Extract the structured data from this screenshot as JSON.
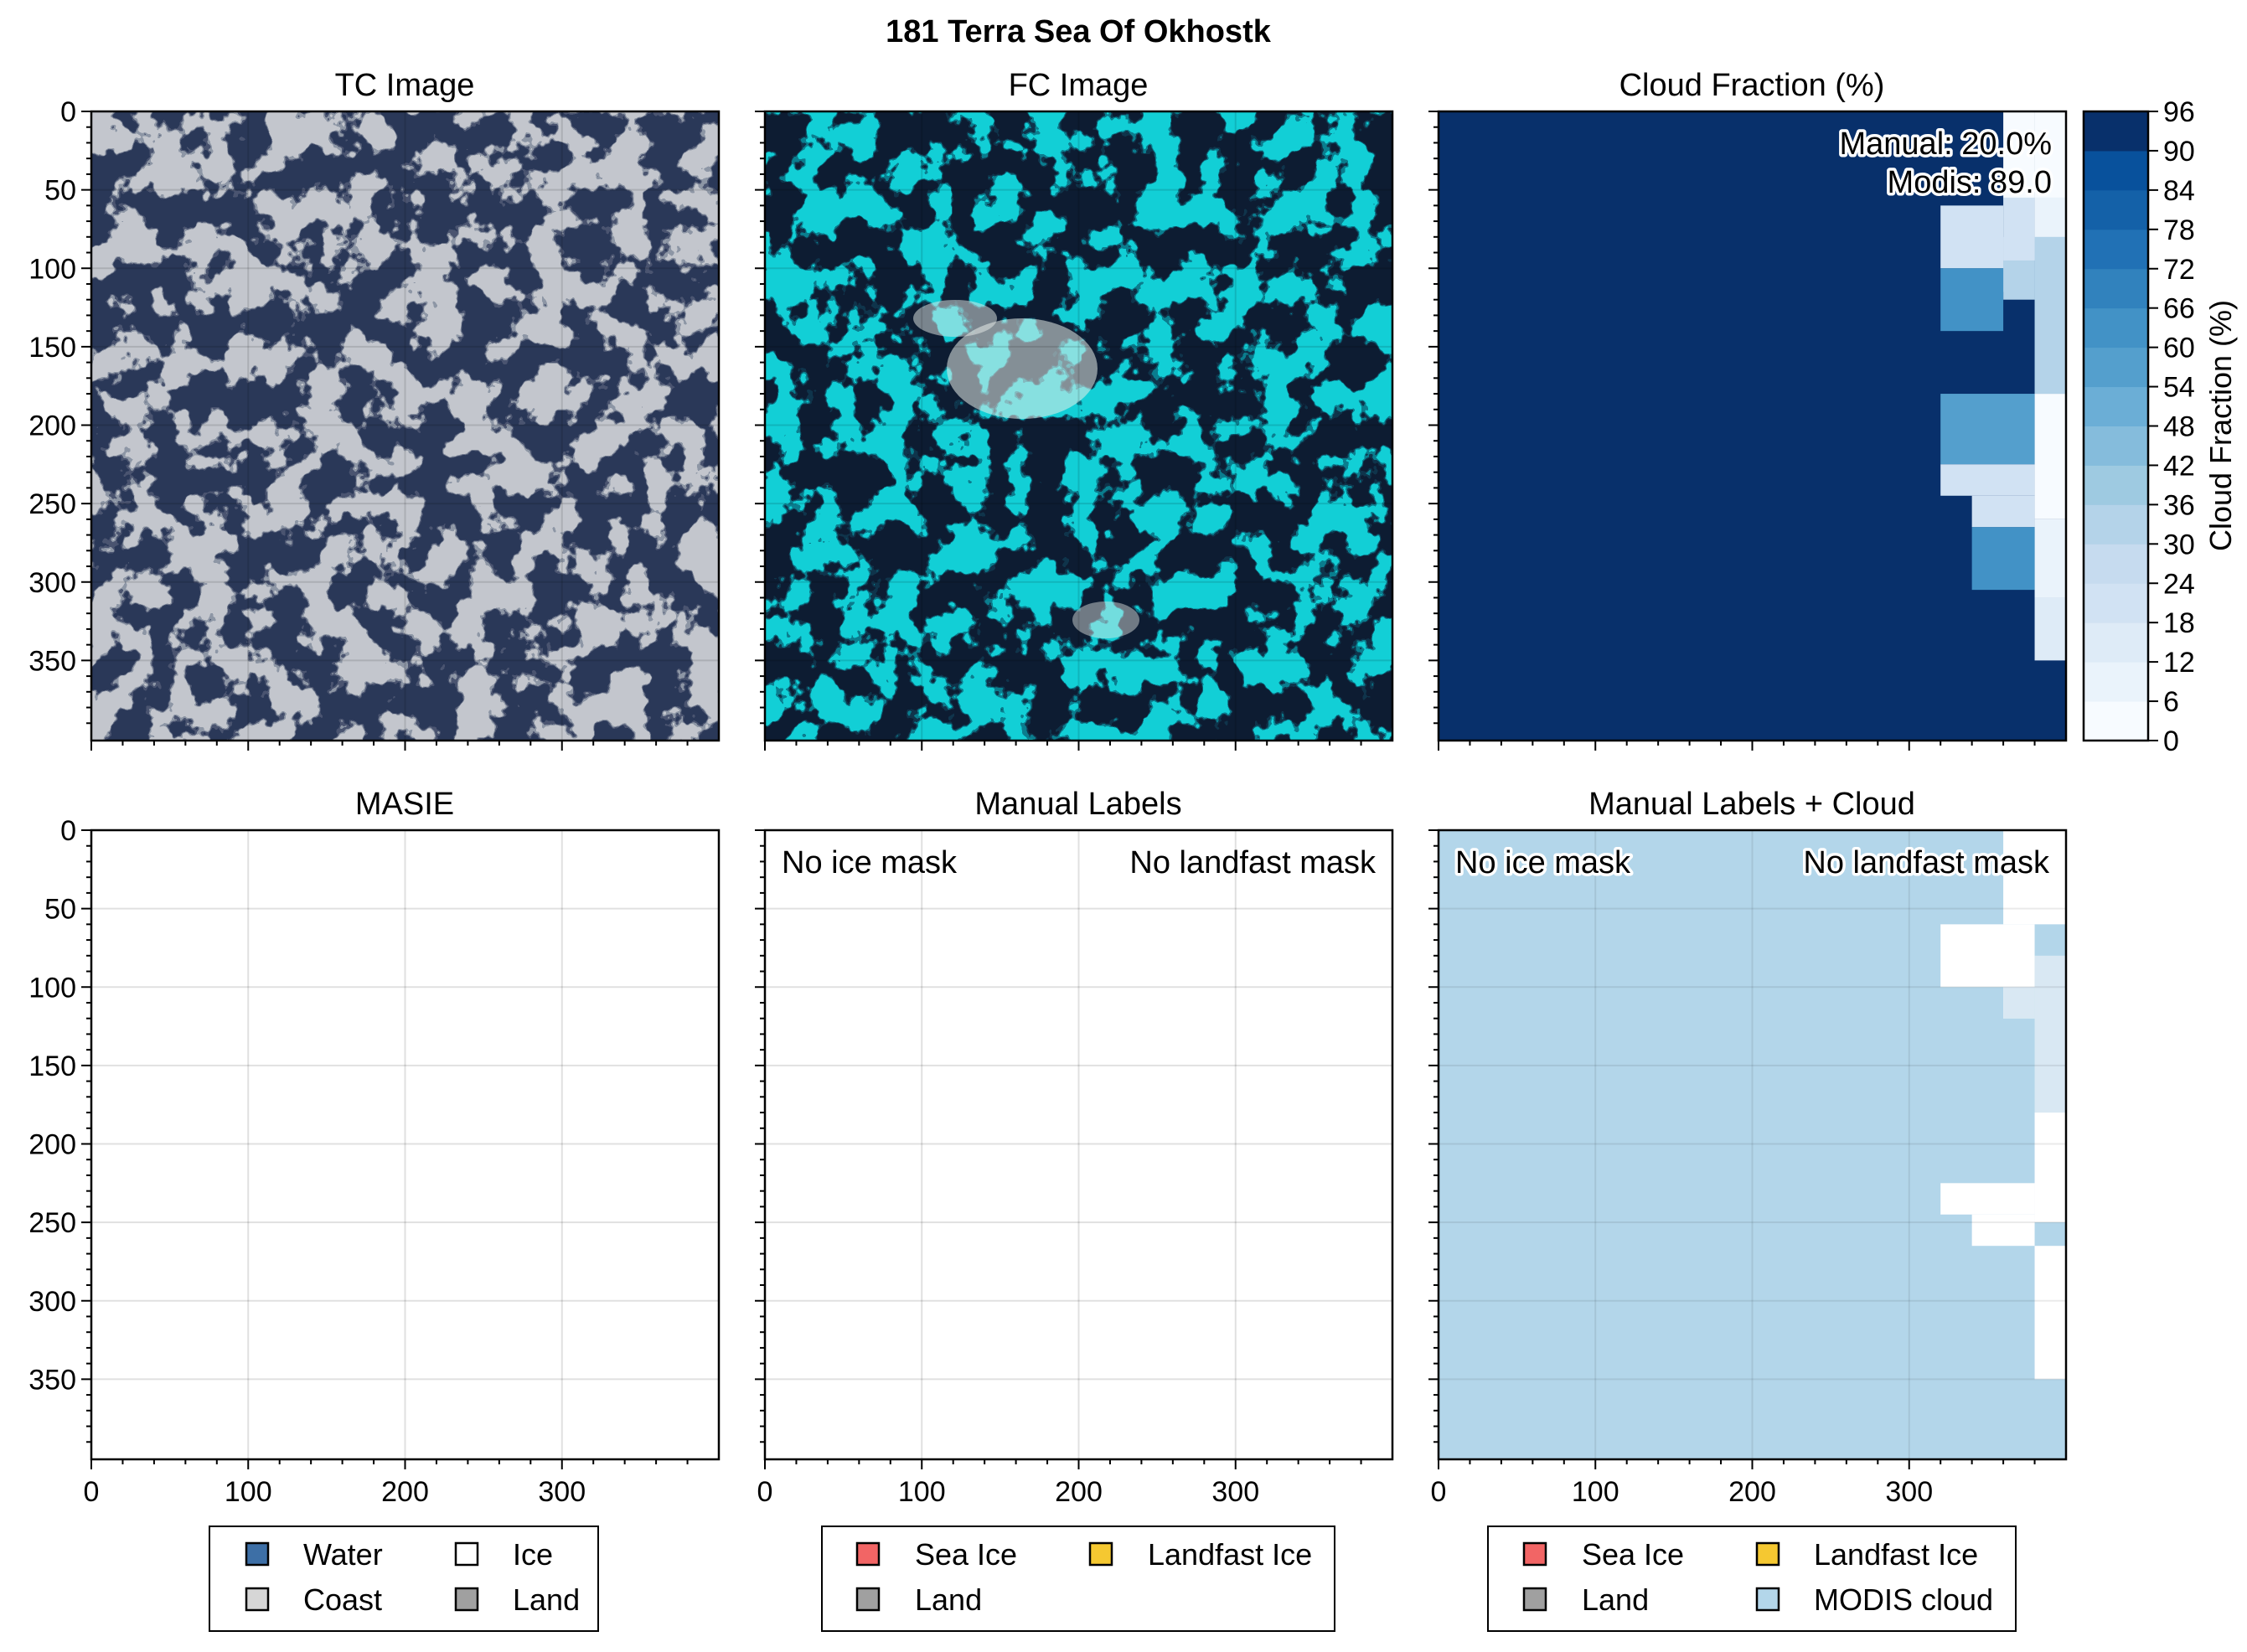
{
  "figure": {
    "title": "181 Terra Sea Of Okhostk"
  },
  "colors": {
    "water": "#3d6fa6",
    "coast": "#d6d6d6",
    "ice": "#ffffff",
    "land": "#a0a0a0",
    "sea_ice": "#f26565",
    "landfast_ice": "#f5c831",
    "modis_cloud": "#b3d6ea",
    "cloud_dark": "#08306b",
    "tc_base": "#c3c6cd",
    "tc_dark": "#29385a",
    "fc_base": "#12cfd6",
    "fc_dark": "#0c1a33"
  },
  "panels": {
    "tc": {
      "title": "TC Image"
    },
    "fc": {
      "title": "FC Image"
    },
    "cloud": {
      "title": "Cloud Fraction (%)",
      "manual": "Manual: 20.0%",
      "modis": "Modis: 89.0"
    },
    "masie": {
      "title": "MASIE"
    },
    "manual": {
      "title": "Manual Labels",
      "no_ice": "No ice mask",
      "no_landfast": "No landfast mask"
    },
    "manual_cloud": {
      "title": "Manual Labels + Cloud",
      "no_ice": "No ice mask",
      "no_landfast": "No landfast mask"
    }
  },
  "axes": {
    "y_ticks": [
      "0",
      "50",
      "100",
      "150",
      "200",
      "250",
      "300",
      "350"
    ],
    "x_ticks": [
      "0",
      "100",
      "200",
      "300"
    ]
  },
  "colorbar": {
    "label": "Cloud Fraction (%)",
    "ticks": [
      "96",
      "90",
      "84",
      "78",
      "72",
      "66",
      "60",
      "54",
      "48",
      "42",
      "36",
      "30",
      "24",
      "18",
      "12",
      "6",
      "0"
    ]
  },
  "legends": {
    "masie": [
      {
        "label": "Water",
        "color": "#3d6fa6"
      },
      {
        "label": "Ice",
        "color": "#ffffff"
      },
      {
        "label": "Coast",
        "color": "#d6d6d6"
      },
      {
        "label": "Land",
        "color": "#a0a0a0"
      }
    ],
    "manual": [
      {
        "label": "Sea Ice",
        "color": "#f26565"
      },
      {
        "label": "Landfast Ice",
        "color": "#f5c831"
      },
      {
        "label": "Land",
        "color": "#a0a0a0"
      }
    ],
    "manual_cloud": [
      {
        "label": "Sea Ice",
        "color": "#f26565"
      },
      {
        "label": "Landfast Ice",
        "color": "#f5c831"
      },
      {
        "label": "Land",
        "color": "#a0a0a0"
      },
      {
        "label": "MODIS cloud",
        "color": "#b3d6ea"
      }
    ]
  },
  "chart_data": [
    {
      "type": "heatmap",
      "title": "TC Image",
      "ylim": [
        400,
        0
      ],
      "xlim": [
        0,
        400
      ],
      "grid": true
    },
    {
      "type": "heatmap",
      "title": "FC Image",
      "ylim": [
        400,
        0
      ],
      "xlim": [
        0,
        400
      ],
      "grid": true
    },
    {
      "type": "heatmap",
      "title": "Cloud Fraction (%)",
      "xlim": [
        0,
        400
      ],
      "ylim": [
        400,
        0
      ],
      "colorbar": {
        "label": "Cloud Fraction (%)",
        "range": [
          0,
          96
        ],
        "step": 6
      },
      "annotations": [
        "Manual: 20.0%",
        "Modis: 89.0"
      ],
      "cells": [
        {
          "x": [
            360,
            380
          ],
          "y": [
            0,
            55
          ],
          "value": 5
        },
        {
          "x": [
            380,
            400
          ],
          "y": [
            0,
            55
          ],
          "value": 3
        },
        {
          "x": [
            360,
            380
          ],
          "y": [
            55,
            95
          ],
          "value": 20
        },
        {
          "x": [
            380,
            400
          ],
          "y": [
            55,
            95
          ],
          "value": 8
        },
        {
          "x": [
            320,
            360
          ],
          "y": [
            60,
            100
          ],
          "value": 20
        },
        {
          "x": [
            360,
            380
          ],
          "y": [
            80,
            115
          ],
          "value": 20
        },
        {
          "x": [
            380,
            400
          ],
          "y": [
            80,
            180
          ],
          "value": 30
        },
        {
          "x": [
            360,
            380
          ],
          "y": [
            95,
            120
          ],
          "value": 30
        },
        {
          "x": [
            320,
            360
          ],
          "y": [
            100,
            140
          ],
          "value": 60
        },
        {
          "x": [
            380,
            400
          ],
          "y": [
            180,
            260
          ],
          "value": 3
        },
        {
          "x": [
            320,
            380
          ],
          "y": [
            180,
            225
          ],
          "value": 55
        },
        {
          "x": [
            320,
            380
          ],
          "y": [
            225,
            245
          ],
          "value": 20
        },
        {
          "x": [
            340,
            380
          ],
          "y": [
            245,
            265
          ],
          "value": 20
        },
        {
          "x": [
            380,
            400
          ],
          "y": [
            260,
            310
          ],
          "value": 8
        },
        {
          "x": [
            340,
            380
          ],
          "y": [
            265,
            305
          ],
          "value": 60
        },
        {
          "x": [
            380,
            400
          ],
          "y": [
            310,
            350
          ],
          "value": 14
        }
      ],
      "default_value": 96
    },
    {
      "type": "heatmap",
      "title": "MASIE",
      "xlim": [
        0,
        400
      ],
      "ylim": [
        400,
        0
      ],
      "xlabel": "",
      "ylabel": "",
      "grid": true,
      "legend": [
        "Water",
        "Ice",
        "Coast",
        "Land"
      ]
    },
    {
      "type": "heatmap",
      "title": "Manual Labels",
      "xlim": [
        0,
        400
      ],
      "ylim": [
        400,
        0
      ],
      "annotations": [
        "No ice mask",
        "No landfast mask"
      ],
      "grid": true,
      "legend": [
        "Sea Ice",
        "Landfast Ice",
        "Land"
      ]
    },
    {
      "type": "heatmap",
      "title": "Manual Labels + Cloud",
      "xlim": [
        0,
        400
      ],
      "ylim": [
        400,
        0
      ],
      "annotations": [
        "No ice mask",
        "No landfast mask"
      ],
      "grid": true,
      "legend": [
        "Sea Ice",
        "Landfast Ice",
        "Land",
        "MODIS cloud"
      ],
      "clear_cells": [
        {
          "x": [
            360,
            400
          ],
          "y": [
            0,
            60
          ]
        },
        {
          "x": [
            320,
            380
          ],
          "y": [
            60,
            100
          ]
        },
        {
          "x": [
            360,
            380
          ],
          "y": [
            100,
            120
          ]
        },
        {
          "x": [
            380,
            400
          ],
          "y": [
            180,
            250
          ]
        },
        {
          "x": [
            320,
            380
          ],
          "y": [
            225,
            245
          ]
        },
        {
          "x": [
            340,
            380
          ],
          "y": [
            245,
            265
          ]
        },
        {
          "x": [
            380,
            400
          ],
          "y": [
            265,
            350
          ]
        }
      ],
      "light_cells": [
        {
          "x": [
            380,
            400
          ],
          "y": [
            80,
            180
          ]
        },
        {
          "x": [
            360,
            380
          ],
          "y": [
            100,
            120
          ]
        }
      ]
    }
  ]
}
